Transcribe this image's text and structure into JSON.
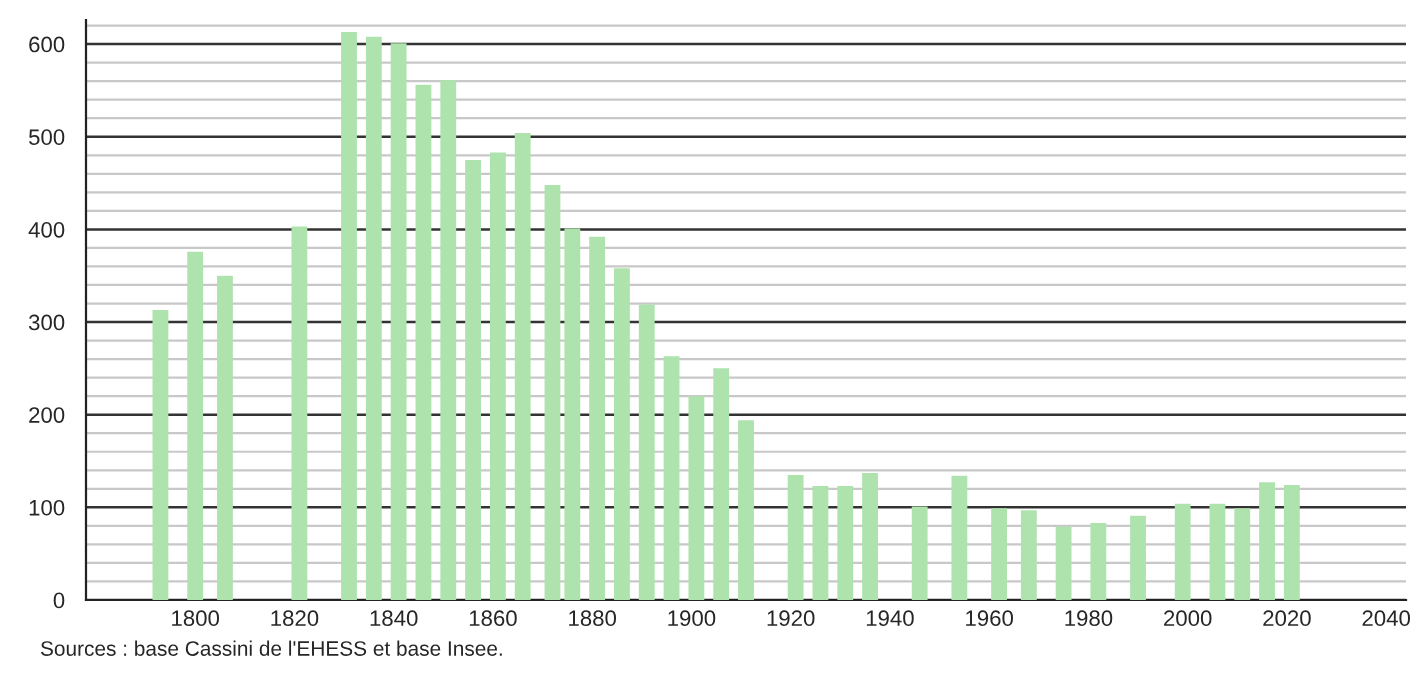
{
  "chart_data": {
    "type": "bar",
    "x": [
      1793,
      1800,
      1806,
      1821,
      1831,
      1836,
      1841,
      1846,
      1851,
      1856,
      1861,
      1866,
      1872,
      1876,
      1881,
      1886,
      1891,
      1896,
      1901,
      1906,
      1911,
      1921,
      1926,
      1931,
      1936,
      1946,
      1954,
      1962,
      1968,
      1975,
      1982,
      1990,
      1999,
      2006,
      2011,
      2016,
      2021
    ],
    "series": [
      {
        "color": "#aee3ae",
        "values": [
          313,
          376,
          350,
          403,
          613,
          608,
          601,
          556,
          561,
          475,
          483,
          504,
          448,
          401,
          392,
          358,
          319,
          263,
          220,
          250,
          194,
          135,
          123,
          123,
          137,
          101,
          134,
          99,
          97,
          79,
          83,
          91,
          104,
          104,
          99,
          127,
          124
        ]
      }
    ],
    "xlim": [
      1778,
      2044
    ],
    "xticks": [
      1800,
      1820,
      1840,
      1860,
      1880,
      1900,
      1920,
      1940,
      1960,
      1980,
      2000,
      2020,
      2040
    ],
    "ylim": [
      0,
      626
    ],
    "yticks": [
      0,
      100,
      200,
      300,
      400,
      500,
      600
    ],
    "grid": "y",
    "annotations": [
      "Sources : base Cassini de l'EHESS et base Insee."
    ]
  }
}
